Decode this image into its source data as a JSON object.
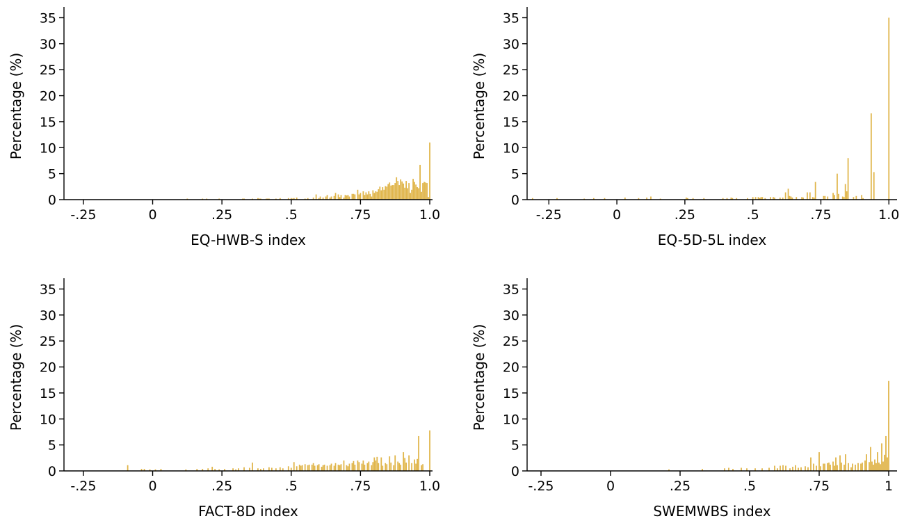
{
  "colors": {
    "bar": "#e0b54a",
    "axis": "#000000",
    "background": "#ffffff"
  },
  "chart_data": [
    {
      "type": "bar",
      "xlabel": "EQ-HWB-S index",
      "ylabel": "Percentage (%)",
      "xlim": [
        -0.32,
        1.01
      ],
      "ylim": [
        0,
        36
      ],
      "xticks": [
        -0.25,
        0,
        0.25,
        0.5,
        0.75,
        1.0
      ],
      "xtick_labels": [
        "-.25",
        "0",
        ".25",
        ".5",
        ".75",
        "1.0"
      ],
      "yticks": [
        0,
        5,
        10,
        15,
        20,
        25,
        30,
        35
      ],
      "ytick_labels": [
        "0",
        "5",
        "10",
        "15",
        "20",
        "25",
        "30",
        "35"
      ],
      "bin_width": 0.005,
      "x": [
        0.125,
        0.18,
        0.195,
        0.24,
        0.325,
        0.33,
        0.36,
        0.38,
        0.385,
        0.39,
        0.41,
        0.415,
        0.42,
        0.445,
        0.46,
        0.49,
        0.5,
        0.505,
        0.51,
        0.52,
        0.55,
        0.56,
        0.58,
        0.59,
        0.6,
        0.605,
        0.615,
        0.625,
        0.63,
        0.64,
        0.645,
        0.655,
        0.66,
        0.67,
        0.675,
        0.68,
        0.69,
        0.695,
        0.7,
        0.705,
        0.71,
        0.72,
        0.725,
        0.73,
        0.74,
        0.745,
        0.75,
        0.76,
        0.765,
        0.77,
        0.775,
        0.78,
        0.785,
        0.79,
        0.795,
        0.8,
        0.805,
        0.81,
        0.815,
        0.82,
        0.825,
        0.83,
        0.835,
        0.84,
        0.845,
        0.85,
        0.855,
        0.86,
        0.865,
        0.87,
        0.875,
        0.88,
        0.885,
        0.89,
        0.895,
        0.9,
        0.905,
        0.91,
        0.915,
        0.92,
        0.925,
        0.93,
        0.935,
        0.94,
        0.945,
        0.95,
        0.955,
        0.96,
        0.965,
        0.97,
        0.975,
        0.98,
        0.985,
        0.99,
        0.995,
        1.0
      ],
      "values": [
        0.2,
        0.2,
        0.2,
        0.2,
        0.2,
        0.2,
        0.2,
        0.3,
        0.2,
        0.2,
        0.2,
        0.2,
        0.2,
        0.2,
        0.3,
        0.3,
        0.3,
        0.2,
        0.3,
        0.4,
        0.2,
        0.3,
        0.4,
        1.0,
        0.3,
        0.6,
        0.4,
        0.6,
        0.9,
        0.4,
        0.6,
        0.7,
        1.3,
        1.0,
        0.5,
        0.9,
        0.4,
        0.9,
        0.8,
        0.9,
        0.6,
        1.1,
        1.1,
        1.0,
        1.9,
        1.0,
        1.3,
        1.6,
        0.9,
        1.4,
        1.0,
        1.6,
        1.1,
        0.6,
        1.8,
        1.3,
        1.6,
        1.5,
        2.0,
        2.5,
        1.8,
        2.4,
        1.9,
        2.6,
        2.5,
        3.0,
        3.3,
        2.7,
        2.8,
        2.8,
        3.2,
        4.3,
        3.6,
        2.8,
        3.9,
        3.5,
        3.1,
        2.3,
        3.6,
        2.2,
        3.2,
        1.3,
        1.9,
        4.0,
        3.4,
        2.9,
        2.4,
        2.2,
        6.7,
        1.5,
        3.2,
        3.4,
        3.3,
        3.2,
        0.5,
        11.0
      ]
    },
    {
      "type": "bar",
      "xlabel": "EQ-5D-5L index",
      "ylabel": "Percentage (%)",
      "xlim": [
        -0.33,
        1.03
      ],
      "ylim": [
        0,
        36
      ],
      "xticks": [
        -0.25,
        0,
        0.25,
        0.5,
        0.75,
        1.0
      ],
      "xtick_labels": [
        "-.25",
        "0",
        ".25",
        ".5",
        ".75",
        "1.0"
      ],
      "yticks": [
        0,
        5,
        10,
        15,
        20,
        25,
        30,
        35
      ],
      "ytick_labels": [
        "0",
        "5",
        "10",
        "15",
        "20",
        "25",
        "30",
        "35"
      ],
      "bin_width": 0.005,
      "x": [
        -0.31,
        -0.22,
        -0.12,
        -0.085,
        -0.045,
        0.03,
        0.08,
        0.11,
        0.125,
        0.16,
        0.255,
        0.26,
        0.28,
        0.32,
        0.39,
        0.405,
        0.42,
        0.425,
        0.44,
        0.48,
        0.5,
        0.51,
        0.52,
        0.525,
        0.53,
        0.535,
        0.545,
        0.565,
        0.575,
        0.58,
        0.6,
        0.61,
        0.62,
        0.63,
        0.635,
        0.64,
        0.645,
        0.66,
        0.68,
        0.685,
        0.7,
        0.71,
        0.72,
        0.725,
        0.73,
        0.76,
        0.765,
        0.775,
        0.795,
        0.8,
        0.81,
        0.815,
        0.83,
        0.835,
        0.84,
        0.845,
        0.85,
        0.87,
        0.88,
        0.9,
        0.905,
        0.935,
        0.945,
        1.0
      ],
      "values": [
        0.3,
        0.3,
        0.2,
        0.3,
        0.3,
        0.4,
        0.3,
        0.4,
        0.6,
        0.2,
        0.4,
        0.3,
        0.3,
        0.3,
        0.3,
        0.3,
        0.4,
        0.3,
        0.3,
        0.3,
        0.5,
        0.5,
        0.5,
        0.3,
        0.5,
        0.5,
        0.3,
        0.5,
        0.5,
        0.4,
        0.4,
        0.4,
        1.4,
        2.1,
        0.7,
        0.6,
        0.4,
        0.5,
        0.5,
        0.4,
        1.4,
        1.4,
        0.5,
        0.4,
        3.4,
        0.7,
        0.7,
        0.6,
        1.3,
        0.9,
        5.0,
        1.1,
        0.6,
        0.5,
        3.0,
        1.6,
        8.0,
        0.5,
        0.7,
        0.9,
        0.3,
        16.6,
        5.3,
        35.0
      ]
    },
    {
      "type": "bar",
      "xlabel": "FACT-8D index",
      "ylabel": "Percentage (%)",
      "xlim": [
        -0.32,
        1.01
      ],
      "ylim": [
        0,
        36
      ],
      "xticks": [
        -0.25,
        0,
        0.25,
        0.5,
        0.75,
        1.0
      ],
      "xtick_labels": [
        "-.25",
        "0",
        ".25",
        ".5",
        ".75",
        "1.0"
      ],
      "yticks": [
        0,
        5,
        10,
        15,
        20,
        25,
        30,
        35
      ],
      "ytick_labels": [
        "0",
        "5",
        "10",
        "15",
        "20",
        "25",
        "30",
        "35"
      ],
      "bin_width": 0.005,
      "x": [
        -0.09,
        -0.04,
        -0.03,
        -0.01,
        0.01,
        0.03,
        0.12,
        0.16,
        0.18,
        0.2,
        0.215,
        0.225,
        0.24,
        0.26,
        0.29,
        0.3,
        0.31,
        0.33,
        0.35,
        0.36,
        0.38,
        0.39,
        0.4,
        0.42,
        0.43,
        0.445,
        0.46,
        0.47,
        0.49,
        0.5,
        0.51,
        0.52,
        0.53,
        0.535,
        0.54,
        0.55,
        0.56,
        0.565,
        0.575,
        0.58,
        0.585,
        0.595,
        0.6,
        0.61,
        0.615,
        0.62,
        0.63,
        0.64,
        0.645,
        0.655,
        0.66,
        0.67,
        0.675,
        0.68,
        0.69,
        0.7,
        0.705,
        0.71,
        0.72,
        0.725,
        0.73,
        0.74,
        0.745,
        0.755,
        0.76,
        0.765,
        0.775,
        0.78,
        0.79,
        0.795,
        0.8,
        0.805,
        0.81,
        0.815,
        0.825,
        0.83,
        0.84,
        0.845,
        0.855,
        0.86,
        0.87,
        0.875,
        0.885,
        0.89,
        0.895,
        0.905,
        0.91,
        0.915,
        0.925,
        0.935,
        0.945,
        0.95,
        0.955,
        0.96,
        0.97,
        0.975,
        1.0
      ],
      "values": [
        1.1,
        0.4,
        0.4,
        0.3,
        0.3,
        0.4,
        0.3,
        0.4,
        0.4,
        0.5,
        0.8,
        0.4,
        0.3,
        0.4,
        0.5,
        0.3,
        0.5,
        0.7,
        0.6,
        1.6,
        0.5,
        0.4,
        0.5,
        0.7,
        0.6,
        0.5,
        0.7,
        0.5,
        0.9,
        0.6,
        1.7,
        0.9,
        1.2,
        1.0,
        1.1,
        1.3,
        1.1,
        1.2,
        1.2,
        1.5,
        1.0,
        1.1,
        1.3,
        0.8,
        1.1,
        1.2,
        1.0,
        1.1,
        1.4,
        1.0,
        1.5,
        1.2,
        1.1,
        1.3,
        2.0,
        1.1,
        0.9,
        1.4,
        1.5,
        1.9,
        1.2,
        2.0,
        1.7,
        1.4,
        2.0,
        1.2,
        1.5,
        1.8,
        1.1,
        1.7,
        2.6,
        2.0,
        2.7,
        1.5,
        2.6,
        1.0,
        1.5,
        1.3,
        2.8,
        1.6,
        1.1,
        3.0,
        1.8,
        1.5,
        1.2,
        3.6,
        2.5,
        1.6,
        3.0,
        1.5,
        2.2,
        1.4,
        2.3,
        6.7,
        1.1,
        1.3,
        7.8
      ]
    },
    {
      "type": "bar",
      "xlabel": "SWEMWBS index",
      "ylabel": "Percentage (%)",
      "xlim": [
        -0.3,
        1.03
      ],
      "ylim": [
        0,
        36
      ],
      "xticks": [
        -0.25,
        0,
        0.25,
        0.5,
        0.75,
        1
      ],
      "xtick_labels": [
        "-.25",
        "0",
        ".25",
        ".5",
        ".75",
        "1"
      ],
      "yticks": [
        0,
        5,
        10,
        15,
        20,
        25,
        30,
        35
      ],
      "ytick_labels": [
        "0",
        "5",
        "10",
        "15",
        "20",
        "25",
        "30",
        "35"
      ],
      "bin_width": 0.005,
      "x": [
        0.21,
        0.33,
        0.41,
        0.425,
        0.44,
        0.47,
        0.49,
        0.52,
        0.545,
        0.57,
        0.59,
        0.6,
        0.61,
        0.62,
        0.63,
        0.645,
        0.655,
        0.665,
        0.675,
        0.685,
        0.7,
        0.71,
        0.72,
        0.73,
        0.74,
        0.75,
        0.755,
        0.765,
        0.77,
        0.78,
        0.785,
        0.79,
        0.8,
        0.805,
        0.81,
        0.815,
        0.825,
        0.83,
        0.84,
        0.845,
        0.855,
        0.865,
        0.87,
        0.88,
        0.89,
        0.9,
        0.905,
        0.915,
        0.92,
        0.93,
        0.935,
        0.94,
        0.945,
        0.95,
        0.955,
        0.96,
        0.965,
        0.97,
        0.975,
        0.98,
        0.985,
        0.99,
        0.995,
        1.0
      ],
      "values": [
        0.3,
        0.4,
        0.5,
        0.6,
        0.4,
        0.6,
        0.5,
        0.5,
        0.5,
        0.6,
        1.0,
        0.5,
        1.0,
        1.1,
        1.0,
        0.5,
        0.8,
        1.1,
        0.6,
        0.7,
        0.9,
        0.7,
        2.6,
        1.4,
        1.0,
        3.6,
        0.9,
        1.4,
        1.4,
        1.5,
        1.6,
        1.2,
        1.8,
        1.0,
        2.6,
        1.1,
        3.0,
        1.6,
        1.2,
        3.2,
        1.5,
        0.7,
        1.4,
        1.2,
        1.5,
        1.4,
        1.6,
        2.0,
        3.2,
        1.7,
        4.6,
        1.8,
        1.2,
        2.2,
        1.5,
        3.6,
        1.6,
        1.3,
        5.3,
        1.8,
        3.1,
        6.7,
        2.6,
        17.3
      ]
    }
  ]
}
